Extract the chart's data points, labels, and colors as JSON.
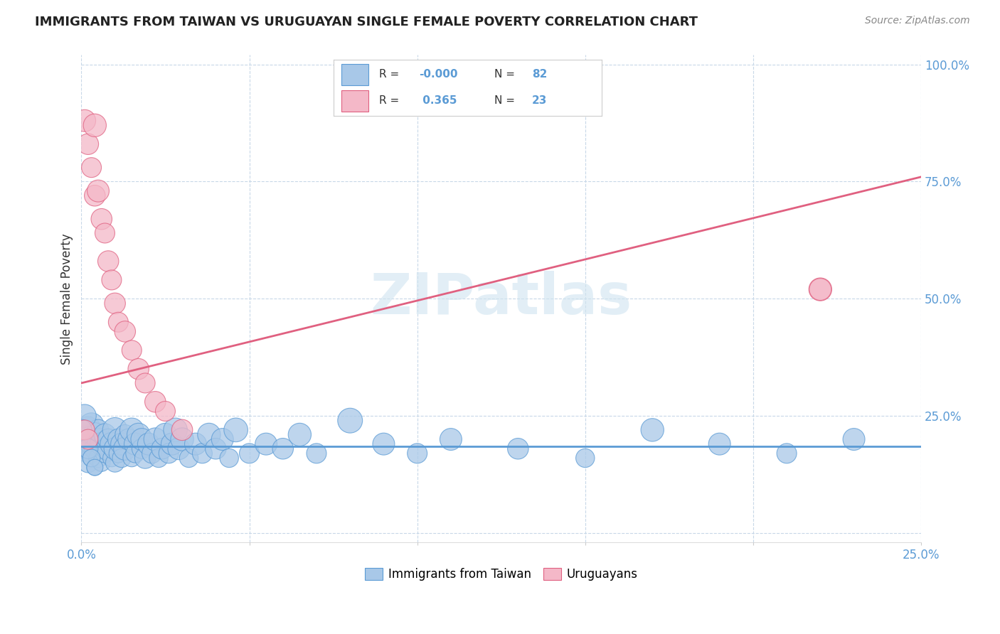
{
  "title": "IMMIGRANTS FROM TAIWAN VS URUGUAYAN SINGLE FEMALE POVERTY CORRELATION CHART",
  "source": "Source: ZipAtlas.com",
  "ylabel_label": "Single Female Poverty",
  "x_min": 0.0,
  "x_max": 0.25,
  "y_min": -0.02,
  "y_max": 1.02,
  "x_ticks": [
    0.0,
    0.05,
    0.1,
    0.15,
    0.2,
    0.25
  ],
  "x_tick_labels": [
    "0.0%",
    "",
    "",
    "",
    "",
    "25.0%"
  ],
  "y_ticks": [
    0.0,
    0.25,
    0.5,
    0.75,
    1.0
  ],
  "y_tick_labels": [
    "",
    "25.0%",
    "50.0%",
    "75.0%",
    "100.0%"
  ],
  "taiwan_color": "#a8c8e8",
  "taiwan_edge_color": "#5b9bd5",
  "uruguay_color": "#f4b8c8",
  "uruguay_edge_color": "#e06080",
  "taiwan_line_color": "#5b9bd5",
  "uruguay_line_color": "#e06080",
  "taiwan_R": -0.0,
  "taiwan_N": 82,
  "uruguay_R": 0.365,
  "uruguay_N": 23,
  "watermark": "ZIPatlas",
  "legend_label_1": "Immigrants from Taiwan",
  "legend_label_2": "Uruguayans",
  "taiwan_line_y0": 0.185,
  "taiwan_line_y1": 0.185,
  "uruguay_line_y0": 0.32,
  "uruguay_line_y1": 0.76,
  "taiwan_x": [
    0.001,
    0.001,
    0.001,
    0.002,
    0.002,
    0.002,
    0.002,
    0.003,
    0.003,
    0.003,
    0.003,
    0.004,
    0.004,
    0.004,
    0.005,
    0.005,
    0.005,
    0.006,
    0.006,
    0.007,
    0.007,
    0.008,
    0.008,
    0.009,
    0.009,
    0.01,
    0.01,
    0.01,
    0.011,
    0.011,
    0.012,
    0.012,
    0.013,
    0.013,
    0.014,
    0.015,
    0.015,
    0.016,
    0.016,
    0.017,
    0.018,
    0.018,
    0.019,
    0.02,
    0.021,
    0.022,
    0.023,
    0.024,
    0.025,
    0.026,
    0.027,
    0.028,
    0.029,
    0.03,
    0.032,
    0.034,
    0.036,
    0.038,
    0.04,
    0.042,
    0.044,
    0.046,
    0.05,
    0.055,
    0.06,
    0.065,
    0.07,
    0.08,
    0.09,
    0.1,
    0.11,
    0.13,
    0.15,
    0.17,
    0.19,
    0.21,
    0.23,
    0.001,
    0.0,
    0.002,
    0.003,
    0.004
  ],
  "taiwan_y": [
    0.21,
    0.19,
    0.17,
    0.22,
    0.18,
    0.15,
    0.2,
    0.23,
    0.17,
    0.19,
    0.16,
    0.21,
    0.18,
    0.14,
    0.2,
    0.16,
    0.22,
    0.19,
    0.15,
    0.21,
    0.17,
    0.18,
    0.2,
    0.16,
    0.19,
    0.22,
    0.15,
    0.18,
    0.2,
    0.17,
    0.19,
    0.16,
    0.21,
    0.18,
    0.2,
    0.22,
    0.16,
    0.19,
    0.17,
    0.21,
    0.18,
    0.2,
    0.16,
    0.19,
    0.17,
    0.2,
    0.16,
    0.18,
    0.21,
    0.17,
    0.19,
    0.22,
    0.18,
    0.2,
    0.16,
    0.19,
    0.17,
    0.21,
    0.18,
    0.2,
    0.16,
    0.22,
    0.17,
    0.19,
    0.18,
    0.21,
    0.17,
    0.24,
    0.19,
    0.17,
    0.2,
    0.18,
    0.16,
    0.22,
    0.19,
    0.17,
    0.2,
    0.25,
    0.22,
    0.18,
    0.16,
    0.14
  ],
  "taiwan_sizes": [
    40,
    35,
    30,
    80,
    55,
    45,
    65,
    70,
    40,
    55,
    35,
    65,
    50,
    30,
    55,
    40,
    50,
    60,
    35,
    55,
    40,
    65,
    50,
    35,
    60,
    70,
    40,
    55,
    50,
    40,
    55,
    40,
    45,
    60,
    50,
    65,
    35,
    55,
    40,
    60,
    45,
    55,
    50,
    55,
    45,
    60,
    40,
    50,
    60,
    45,
    55,
    65,
    55,
    60,
    40,
    55,
    45,
    60,
    50,
    55,
    40,
    65,
    45,
    55,
    50,
    60,
    45,
    70,
    55,
    45,
    55,
    50,
    40,
    60,
    55,
    45,
    55,
    60,
    50,
    45,
    35,
    30
  ],
  "uruguay_x": [
    0.001,
    0.002,
    0.003,
    0.004,
    0.004,
    0.005,
    0.006,
    0.007,
    0.008,
    0.009,
    0.01,
    0.011,
    0.013,
    0.015,
    0.017,
    0.019,
    0.022,
    0.025,
    0.03,
    0.001,
    0.002,
    0.22,
    0.22
  ],
  "uruguay_y": [
    0.88,
    0.83,
    0.78,
    0.87,
    0.72,
    0.73,
    0.67,
    0.64,
    0.58,
    0.54,
    0.49,
    0.45,
    0.43,
    0.39,
    0.35,
    0.32,
    0.28,
    0.26,
    0.22,
    0.22,
    0.2,
    0.52,
    0.52
  ],
  "uruguay_sizes": [
    55,
    50,
    45,
    60,
    50,
    55,
    50,
    45,
    50,
    45,
    50,
    45,
    50,
    45,
    50,
    45,
    50,
    45,
    50,
    45,
    45,
    60,
    55
  ]
}
